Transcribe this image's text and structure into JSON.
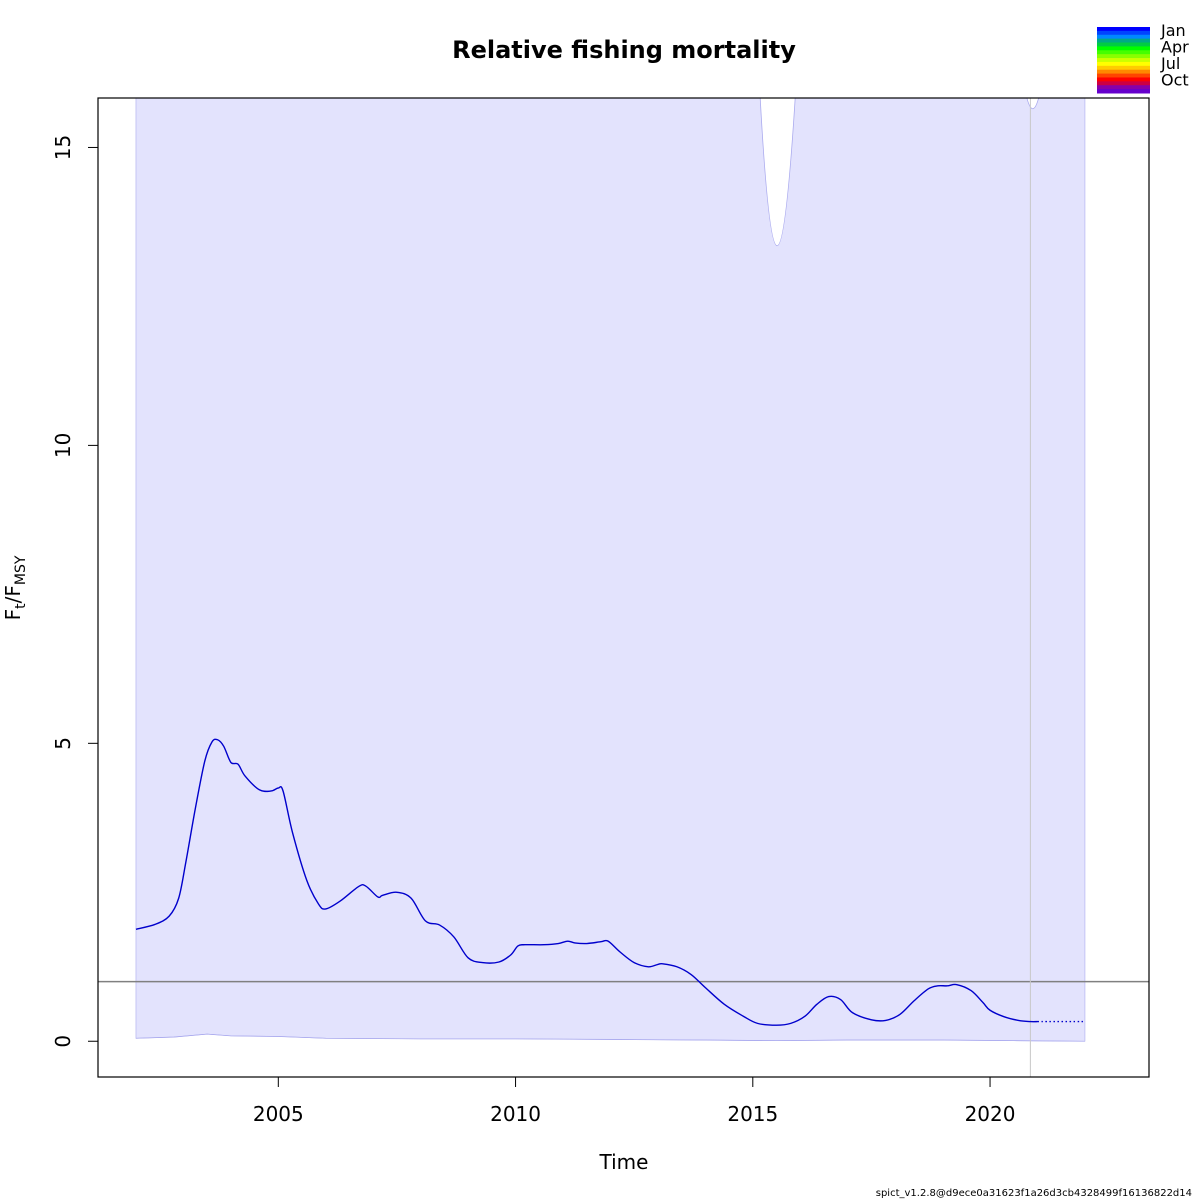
{
  "chart_data": {
    "type": "line",
    "title": "Relative fishing mortality",
    "xlabel": "Time",
    "ylabel": {
      "main": "F",
      "sub1": "t",
      "mid": "/F",
      "sub2": "MSY"
    },
    "xlim": [
      2001.2,
      2023.35
    ],
    "ylim": [
      -0.6,
      15.83
    ],
    "xticks": [
      2005,
      2010,
      2015,
      2020
    ],
    "yticks": [
      0,
      5,
      10,
      15
    ],
    "reference_line": 1.0,
    "last_observation_time": 2020.85,
    "colors": {
      "line": "#0000cc",
      "band": "#e3e3fd",
      "band_edge": "#aaaaee",
      "refline": "#808080",
      "obsline": "#c8c8c8"
    },
    "series": [
      {
        "values": [
          [
            2002.0,
            1.88
          ],
          [
            2002.4,
            1.96
          ],
          [
            2002.7,
            2.1
          ],
          [
            2002.9,
            2.4
          ],
          [
            2003.05,
            3.0
          ],
          [
            2003.25,
            3.9
          ],
          [
            2003.45,
            4.7
          ],
          [
            2003.6,
            5.02
          ],
          [
            2003.72,
            5.06
          ],
          [
            2003.85,
            4.95
          ],
          [
            2004.0,
            4.68
          ],
          [
            2004.15,
            4.65
          ],
          [
            2004.3,
            4.45
          ],
          [
            2004.6,
            4.22
          ],
          [
            2004.85,
            4.2
          ],
          [
            2005.0,
            4.25
          ],
          [
            2005.1,
            4.2
          ],
          [
            2005.3,
            3.5
          ],
          [
            2005.6,
            2.7
          ],
          [
            2005.85,
            2.3
          ],
          [
            2006.0,
            2.22
          ],
          [
            2006.3,
            2.35
          ],
          [
            2006.7,
            2.6
          ],
          [
            2006.85,
            2.6
          ],
          [
            2007.1,
            2.42
          ],
          [
            2007.2,
            2.45
          ],
          [
            2007.5,
            2.5
          ],
          [
            2007.8,
            2.4
          ],
          [
            2008.1,
            2.02
          ],
          [
            2008.4,
            1.95
          ],
          [
            2008.7,
            1.75
          ],
          [
            2009.0,
            1.4
          ],
          [
            2009.3,
            1.32
          ],
          [
            2009.65,
            1.33
          ],
          [
            2009.9,
            1.45
          ],
          [
            2010.05,
            1.6
          ],
          [
            2010.2,
            1.62
          ],
          [
            2010.6,
            1.62
          ],
          [
            2010.9,
            1.64
          ],
          [
            2011.1,
            1.68
          ],
          [
            2011.25,
            1.65
          ],
          [
            2011.5,
            1.64
          ],
          [
            2011.8,
            1.67
          ],
          [
            2011.95,
            1.68
          ],
          [
            2012.2,
            1.5
          ],
          [
            2012.5,
            1.32
          ],
          [
            2012.8,
            1.25
          ],
          [
            2013.0,
            1.29
          ],
          [
            2013.1,
            1.3
          ],
          [
            2013.4,
            1.25
          ],
          [
            2013.7,
            1.12
          ],
          [
            2014.0,
            0.9
          ],
          [
            2014.4,
            0.62
          ],
          [
            2014.8,
            0.42
          ],
          [
            2015.1,
            0.3
          ],
          [
            2015.5,
            0.27
          ],
          [
            2015.8,
            0.3
          ],
          [
            2016.1,
            0.42
          ],
          [
            2016.35,
            0.62
          ],
          [
            2016.6,
            0.75
          ],
          [
            2016.85,
            0.7
          ],
          [
            2017.1,
            0.48
          ],
          [
            2017.5,
            0.36
          ],
          [
            2017.8,
            0.35
          ],
          [
            2018.1,
            0.45
          ],
          [
            2018.4,
            0.68
          ],
          [
            2018.7,
            0.88
          ],
          [
            2018.9,
            0.93
          ],
          [
            2019.1,
            0.93
          ],
          [
            2019.3,
            0.95
          ],
          [
            2019.6,
            0.85
          ],
          [
            2019.85,
            0.65
          ],
          [
            2020.0,
            0.52
          ],
          [
            2020.3,
            0.41
          ],
          [
            2020.6,
            0.35
          ],
          [
            2020.85,
            0.33
          ],
          [
            2021.0,
            0.33
          ]
        ]
      },
      {
        "style": "dotted",
        "values": [
          [
            2021.0,
            0.33
          ],
          [
            2022.0,
            0.33
          ]
        ]
      }
    ],
    "ci_lower": [
      [
        2002.0,
        0.05
      ],
      [
        2002.8,
        0.07
      ],
      [
        2003.5,
        0.12
      ],
      [
        2004.0,
        0.09
      ],
      [
        2005.0,
        0.08
      ],
      [
        2006.0,
        0.05
      ],
      [
        2008.0,
        0.04
      ],
      [
        2010.0,
        0.04
      ],
      [
        2012.0,
        0.03
      ],
      [
        2014.0,
        0.02
      ],
      [
        2015.5,
        0.01
      ],
      [
        2017.0,
        0.02
      ],
      [
        2019.0,
        0.02
      ],
      [
        2020.5,
        0.01
      ],
      [
        2022.0,
        0.0
      ]
    ],
    "ci_upper_gaps": [
      {
        "x": [
          2015.15,
          2015.5,
          2015.9
        ],
        "min_y": 13.35
      },
      {
        "x": [
          2020.75,
          2020.9,
          2021.05
        ],
        "min_y": 15.65
      }
    ],
    "legend": {
      "position": "top-right",
      "labels": [
        "Jan",
        "Apr",
        "Jul",
        "Oct"
      ],
      "colors": [
        "#0000ff",
        "#0044ff",
        "#0088ff",
        "#00aa88",
        "#00cc44",
        "#00ff00",
        "#44ff00",
        "#88ff00",
        "#ccff00",
        "#ffff00",
        "#ffcc00",
        "#ff8800",
        "#ff4400",
        "#ff0000",
        "#cc0044",
        "#8800aa",
        "#6600cc"
      ]
    }
  },
  "footer": "spict_v1.2.8@d9ece0a31623f1a26d3cb4328499f16136822d14"
}
